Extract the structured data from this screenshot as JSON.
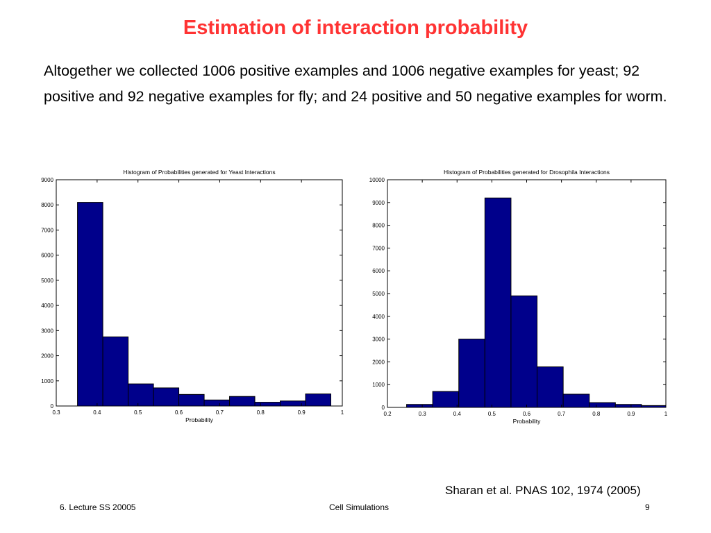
{
  "slide": {
    "title": "Estimation of interaction probability",
    "intro": "Altogether we collected 1006 positive examples and 1006 negative examples for yeast; 92 positive and 92 negative examples for fly; and 24 positive and 50 negative examples for worm.",
    "citation": "Sharan et al. PNAS 102, 1974 (2005)"
  },
  "footer": {
    "left": "6. Lecture SS 20005",
    "center": "Cell Simulations",
    "page": "9"
  },
  "colors": {
    "bar_fill": "#00008b",
    "bar_stroke": "#000000",
    "title_red": "#ff3333"
  },
  "chart_data": [
    {
      "type": "bar",
      "title": "Histogram of Probabilities generated for Yeast Interactions",
      "xlabel": "Probability",
      "ylabel": "",
      "xlim": [
        0.3,
        1
      ],
      "ylim": [
        0,
        9000
      ],
      "xticks": [
        0.3,
        0.4,
        0.5,
        0.6,
        0.7,
        0.8,
        0.9,
        1
      ],
      "xtick_labels": [
        "0.3",
        "0.4",
        "0.5",
        "0.6",
        "0.7",
        "0.8",
        "0.9",
        "1"
      ],
      "yticks": [
        0,
        1000,
        2000,
        3000,
        4000,
        5000,
        6000,
        7000,
        8000,
        9000
      ],
      "ytick_labels": [
        "0",
        "1000",
        "2000",
        "3000",
        "4000",
        "5000",
        "6000",
        "7000",
        "8000",
        "9000"
      ],
      "bin_edges": [
        0.352,
        0.414,
        0.476,
        0.538,
        0.6,
        0.662,
        0.724,
        0.786,
        0.848,
        0.91,
        0.972
      ],
      "values": [
        8100,
        2750,
        880,
        720,
        460,
        240,
        380,
        150,
        200,
        480
      ],
      "grid": false
    },
    {
      "type": "bar",
      "title": "Histogram of Probabilities generated for Drosophila Interactions",
      "xlabel": "Probability",
      "ylabel": "",
      "xlim": [
        0.2,
        1
      ],
      "ylim": [
        0,
        10000
      ],
      "xticks": [
        0.2,
        0.3,
        0.4,
        0.5,
        0.6,
        0.7,
        0.8,
        0.9,
        1
      ],
      "xtick_labels": [
        "0.2",
        "0.3",
        "0.4",
        "0.5",
        "0.6",
        "0.7",
        "0.8",
        "0.9",
        "1"
      ],
      "yticks": [
        0,
        1000,
        2000,
        3000,
        4000,
        5000,
        6000,
        7000,
        8000,
        9000,
        10000
      ],
      "ytick_labels": [
        "0",
        "1000",
        "2000",
        "3000",
        "4000",
        "5000",
        "6000",
        "7000",
        "8000",
        "9000",
        "10000"
      ],
      "bin_edges": [
        0.255,
        0.33,
        0.405,
        0.48,
        0.555,
        0.63,
        0.705,
        0.78,
        0.855,
        0.93,
        1.0
      ],
      "values": [
        130,
        700,
        3000,
        9200,
        4900,
        1780,
        580,
        210,
        130,
        80
      ],
      "grid": false
    }
  ]
}
